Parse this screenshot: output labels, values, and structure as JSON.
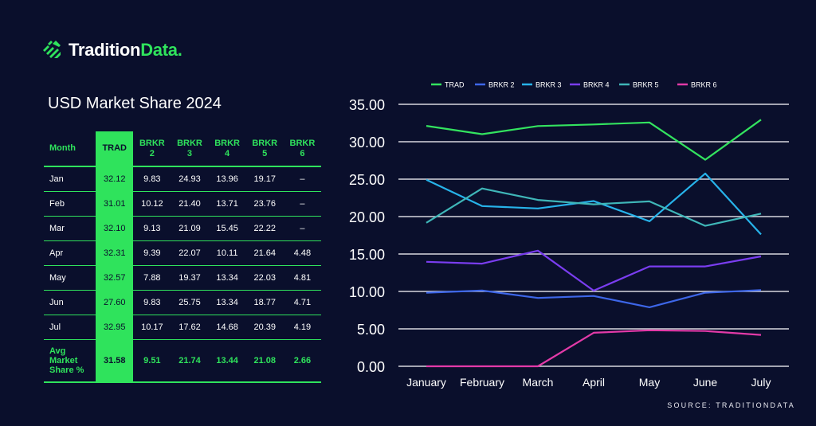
{
  "brand": {
    "name_part1": "Tradition",
    "name_part2": "Data.",
    "accent": "#2fe35c",
    "icon": "tradition-logo-icon"
  },
  "table": {
    "title": "USD Market Share 2024",
    "headers": [
      "Month",
      "TRAD",
      "BRKR 2",
      "BRKR 3",
      "BRKR 4",
      "BRKR 5",
      "BRKR 6"
    ],
    "header_lines": [
      [
        "Month"
      ],
      [
        "TRAD"
      ],
      [
        "BRKR",
        "2"
      ],
      [
        "BRKR",
        "3"
      ],
      [
        "BRKR",
        "4"
      ],
      [
        "BRKR",
        "5"
      ],
      [
        "BRKR",
        "6"
      ]
    ],
    "rows": [
      [
        "Jan",
        "32.12",
        "9.83",
        "24.93",
        "13.96",
        "19.17",
        "–"
      ],
      [
        "Feb",
        "31.01",
        "10.12",
        "21.40",
        "13.71",
        "23.76",
        "–"
      ],
      [
        "Mar",
        "32.10",
        "9.13",
        "21.09",
        "15.45",
        "22.22",
        "–"
      ],
      [
        "Apr",
        "32.31",
        "9.39",
        "22.07",
        "10.11",
        "21.64",
        "4.48"
      ],
      [
        "May",
        "32.57",
        "7.88",
        "19.37",
        "13.34",
        "22.03",
        "4.81"
      ],
      [
        "Jun",
        "27.60",
        "9.83",
        "25.75",
        "13.34",
        "18.77",
        "4.71"
      ],
      [
        "Jul",
        "32.95",
        "10.17",
        "17.62",
        "14.68",
        "20.39",
        "4.19"
      ]
    ],
    "footer": {
      "label_lines": [
        "Avg",
        "Market",
        "Share %"
      ],
      "values": [
        "31.58",
        "9.51",
        "21.74",
        "13.44",
        "21.08",
        "2.66"
      ]
    }
  },
  "chart_data": {
    "type": "line",
    "x": [
      "January",
      "February",
      "March",
      "April",
      "May",
      "June",
      "July"
    ],
    "ylim": [
      0,
      35
    ],
    "yticks": [
      "0.00",
      "5.00",
      "10.00",
      "15.00",
      "20.00",
      "25.00",
      "30.00",
      "35.00"
    ],
    "grid": true,
    "legend_position": "top",
    "series": [
      {
        "name": "TRAD",
        "color": "#33e35f",
        "values": [
          32.12,
          31.01,
          32.1,
          32.31,
          32.57,
          27.6,
          32.95
        ]
      },
      {
        "name": "BRKR 2",
        "color": "#3d66e8",
        "values": [
          9.83,
          10.12,
          9.13,
          9.39,
          7.88,
          9.83,
          10.17
        ]
      },
      {
        "name": "BRKR 3",
        "color": "#27b3ea",
        "values": [
          24.93,
          21.4,
          21.09,
          22.07,
          19.37,
          25.75,
          17.62
        ]
      },
      {
        "name": "BRKR 4",
        "color": "#7a3df0",
        "values": [
          13.96,
          13.71,
          15.45,
          10.11,
          13.34,
          13.34,
          14.68
        ]
      },
      {
        "name": "BRKR 5",
        "color": "#3fb6b8",
        "values": [
          19.17,
          23.76,
          22.22,
          21.64,
          22.03,
          18.77,
          20.39
        ]
      },
      {
        "name": "BRKR 6",
        "color": "#e33aa8",
        "values": [
          0,
          0,
          0,
          4.48,
          4.81,
          4.71,
          4.19
        ]
      }
    ]
  },
  "source": "SOURCE: TRADITIONDATA"
}
